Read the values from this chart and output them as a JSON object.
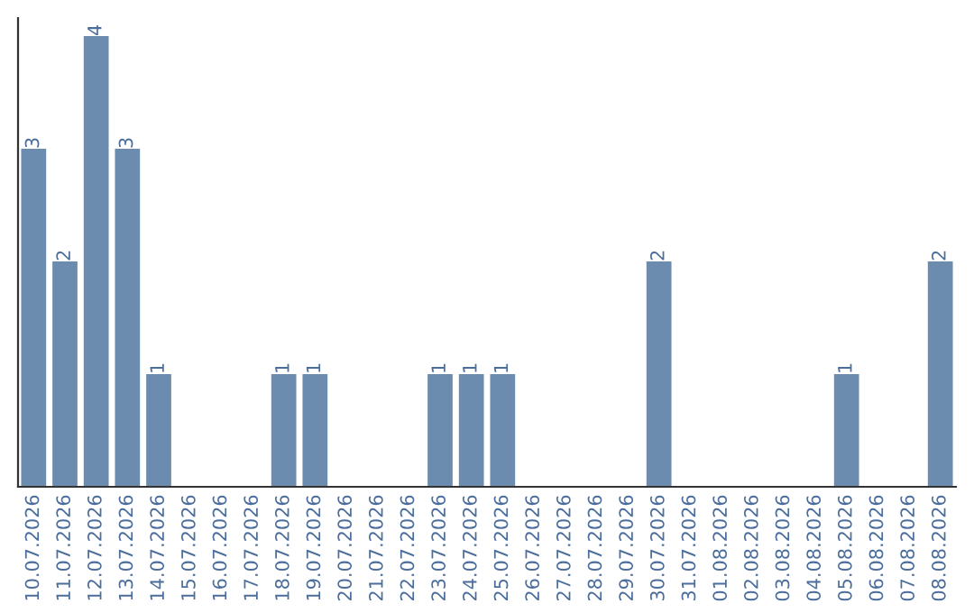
{
  "chart_data": {
    "type": "bar",
    "categories": [
      "10.07.2026",
      "11.07.2026",
      "12.07.2026",
      "13.07.2026",
      "14.07.2026",
      "15.07.2026",
      "16.07.2026",
      "17.07.2026",
      "18.07.2026",
      "19.07.2026",
      "20.07.2026",
      "21.07.2026",
      "22.07.2026",
      "23.07.2026",
      "24.07.2026",
      "25.07.2026",
      "26.07.2026",
      "27.07.2026",
      "28.07.2026",
      "29.07.2026",
      "30.07.2026",
      "31.07.2026",
      "01.08.2026",
      "02.08.2026",
      "03.08.2026",
      "04.08.2026",
      "05.08.2026",
      "06.08.2026",
      "07.08.2026",
      "08.08.2026"
    ],
    "values": [
      3,
      2,
      4,
      3,
      1,
      0,
      0,
      0,
      1,
      1,
      0,
      0,
      0,
      1,
      1,
      1,
      0,
      0,
      0,
      0,
      2,
      0,
      0,
      0,
      0,
      0,
      1,
      0,
      0,
      2
    ],
    "value_labels": [
      "3",
      "2",
      "4",
      "3",
      "1",
      null,
      null,
      null,
      "1",
      "1",
      null,
      null,
      null,
      "1",
      "1",
      "1",
      null,
      null,
      null,
      null,
      "2",
      null,
      null,
      null,
      null,
      null,
      "1",
      null,
      null,
      "2"
    ],
    "color": "#6b8cae",
    "grid": false,
    "legend": false
  }
}
